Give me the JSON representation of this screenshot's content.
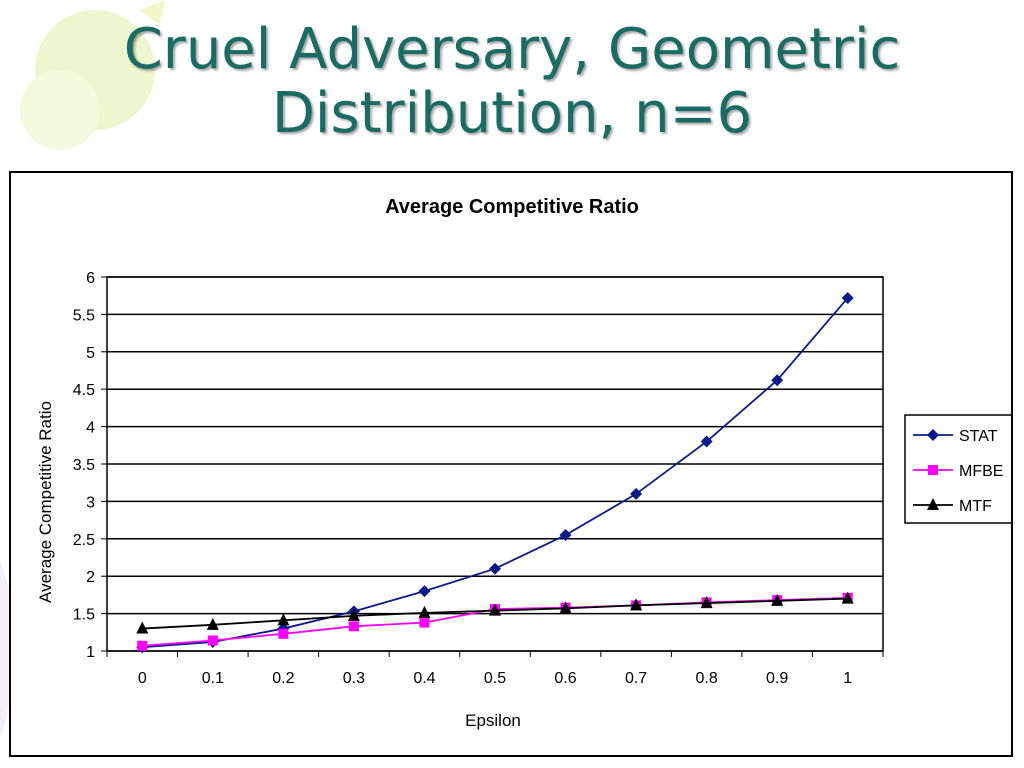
{
  "slide": {
    "title_line1": "Cruel Adversary, Geometric",
    "title_line2": "Distribution, n=6"
  },
  "colors": {
    "title": "#1a6b63",
    "STAT": "#0a1a8a",
    "MFBE": "#ff00ff",
    "MTF": "#000000",
    "decor": "#e8f3c4"
  },
  "chart_data": {
    "type": "line",
    "title": "Average Competitive Ratio",
    "xlabel": "Epsilon",
    "ylabel": "Average Competitive Ratio",
    "categories": [
      "0",
      "0.1",
      "0.2",
      "0.3",
      "0.4",
      "0.5",
      "0.6",
      "0.7",
      "0.8",
      "0.9",
      "1"
    ],
    "ylim": [
      1,
      6
    ],
    "yticks": [
      "1",
      "1.5",
      "2",
      "2.5",
      "3",
      "3.5",
      "4",
      "4.5",
      "5",
      "5.5",
      "6"
    ],
    "grid": true,
    "legend": "right",
    "series": [
      {
        "name": "STAT",
        "marker": "diamond",
        "values": [
          1.05,
          1.12,
          1.3,
          1.53,
          1.8,
          2.1,
          2.55,
          3.1,
          3.8,
          4.62,
          5.72
        ]
      },
      {
        "name": "MFBE",
        "marker": "square",
        "values": [
          1.07,
          1.14,
          1.23,
          1.33,
          1.38,
          1.56,
          1.58,
          1.61,
          1.65,
          1.68,
          1.71
        ]
      },
      {
        "name": "MTF",
        "marker": "triangle",
        "values": [
          1.3,
          1.35,
          1.41,
          1.47,
          1.51,
          1.54,
          1.57,
          1.61,
          1.64,
          1.67,
          1.7
        ]
      }
    ]
  }
}
